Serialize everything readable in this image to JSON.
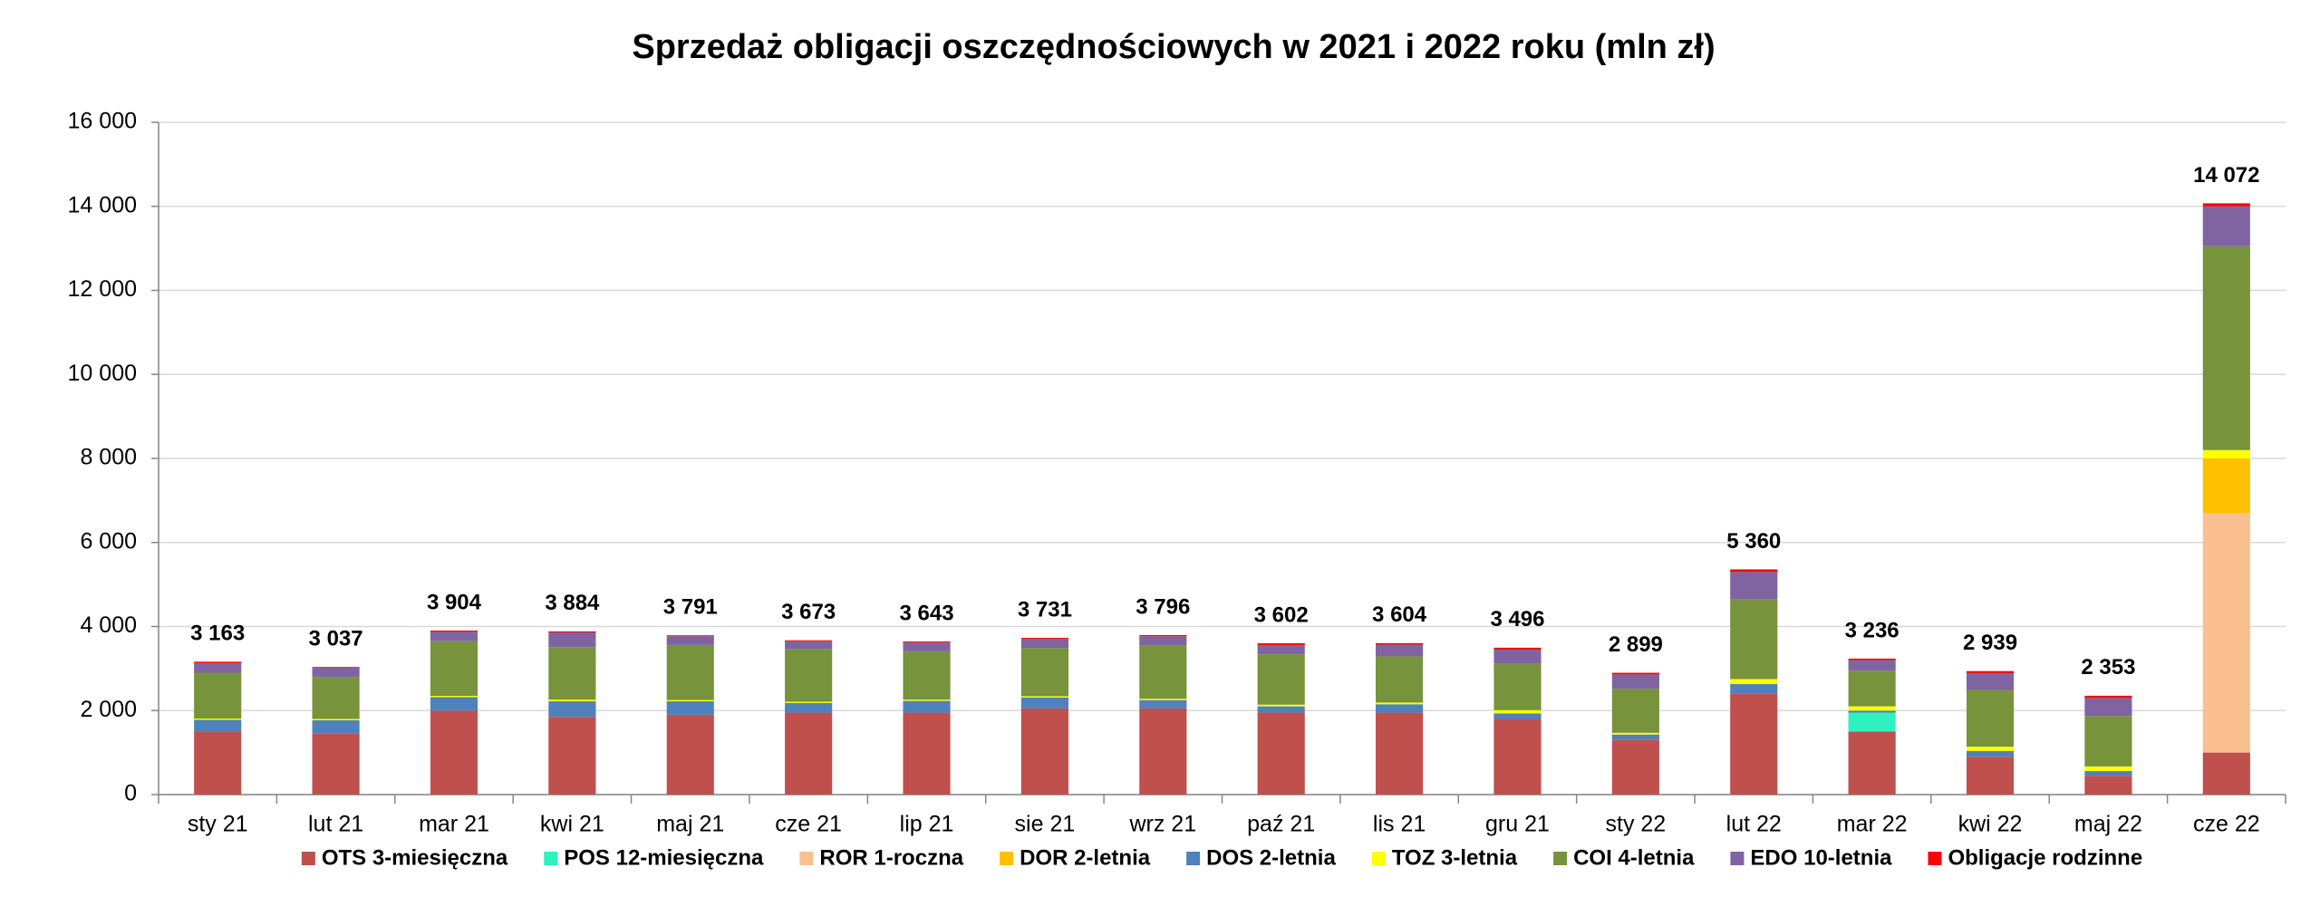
{
  "chart_data": {
    "type": "stacked_bar",
    "title": "Sprzedaż obligacji oszczędnościowych w 2021 i 2022 roku (mln zł)",
    "categories": [
      "sty 21",
      "lut 21",
      "mar 21",
      "kwi 21",
      "maj 21",
      "cze 21",
      "lip 21",
      "sie 21",
      "wrz 21",
      "paź 21",
      "lis 21",
      "gru 21",
      "sty 22",
      "lut 22",
      "mar 22",
      "kwi 22",
      "maj 22",
      "cze 22"
    ],
    "series": [
      {
        "name": "OTS 3-miesięczna",
        "color": "#c0504d",
        "values": [
          1500,
          1450,
          2000,
          1850,
          1900,
          1950,
          1950,
          2050,
          2050,
          1950,
          1950,
          1800,
          1300,
          2400,
          1500,
          900,
          450,
          1000
        ]
      },
      {
        "name": "POS 12-miesięczna",
        "color": "#2ff0c0",
        "values": [
          0,
          0,
          0,
          0,
          0,
          0,
          0,
          0,
          0,
          0,
          0,
          0,
          0,
          0,
          450,
          0,
          0,
          0
        ]
      },
      {
        "name": "ROR 1-roczna",
        "color": "#fac090",
        "values": [
          0,
          0,
          0,
          0,
          0,
          0,
          0,
          0,
          0,
          0,
          0,
          0,
          0,
          0,
          0,
          0,
          0,
          5700
        ]
      },
      {
        "name": "DOR 2-letnia",
        "color": "#ffc000",
        "values": [
          0,
          0,
          0,
          0,
          0,
          0,
          0,
          0,
          0,
          0,
          0,
          0,
          0,
          0,
          0,
          0,
          0,
          1300
        ]
      },
      {
        "name": "DOS 2-letnia",
        "color": "#4f81bd",
        "values": [
          280,
          320,
          320,
          370,
          320,
          230,
          280,
          260,
          200,
          150,
          200,
          130,
          130,
          230,
          50,
          140,
          110,
          0
        ]
      },
      {
        "name": "TOZ 3-letnia",
        "color": "#ffff00",
        "values": [
          30,
          30,
          30,
          40,
          30,
          30,
          30,
          30,
          30,
          40,
          40,
          80,
          40,
          120,
          100,
          100,
          110,
          200
        ]
      },
      {
        "name": "COI 4-letnia",
        "color": "#77933c",
        "values": [
          1090,
          1000,
          1300,
          1250,
          1310,
          1260,
          1150,
          1150,
          1270,
          1200,
          1100,
          1100,
          1050,
          1900,
          850,
          1350,
          1200,
          4850
        ]
      },
      {
        "name": "EDO 10-letnia",
        "color": "#8064a2",
        "values": [
          230,
          220,
          230,
          350,
          210,
          180,
          210,
          220,
          220,
          220,
          280,
          340,
          340,
          650,
          250,
          400,
          430,
          950
        ]
      },
      {
        "name": "Obligacje rodzinne",
        "color": "#ff0000",
        "values": [
          33,
          17,
          24,
          24,
          21,
          23,
          23,
          21,
          26,
          42,
          34,
          46,
          39,
          60,
          36,
          49,
          53,
          72
        ]
      }
    ],
    "totals": {
      "values": [
        3163,
        3037,
        3904,
        3884,
        3791,
        3673,
        3643,
        3731,
        3796,
        3602,
        3604,
        3496,
        2899,
        5360,
        3236,
        2939,
        2353,
        14072
      ],
      "value_labels": [
        "3 163",
        "3 037",
        "3 904",
        "3 884",
        "3 791",
        "3 673",
        "3 643",
        "3 731",
        "3 796",
        "3 602",
        "3 604",
        "3 496",
        "2 899",
        "5 360",
        "3 236",
        "2 939",
        "2 353",
        "14 072"
      ]
    },
    "ylim": [
      0,
      16000
    ],
    "yticks": [
      {
        "value": 0,
        "label": "0"
      },
      {
        "value": 2000,
        "label": "2 000"
      },
      {
        "value": 4000,
        "label": "4 000"
      },
      {
        "value": 6000,
        "label": "6 000"
      },
      {
        "value": 8000,
        "label": "8 000"
      },
      {
        "value": 10000,
        "label": "10 000"
      },
      {
        "value": 12000,
        "label": "12 000"
      },
      {
        "value": 14000,
        "label": "14 000"
      },
      {
        "value": 16000,
        "label": "16 000"
      }
    ],
    "grid": true,
    "legend": "bottom"
  }
}
